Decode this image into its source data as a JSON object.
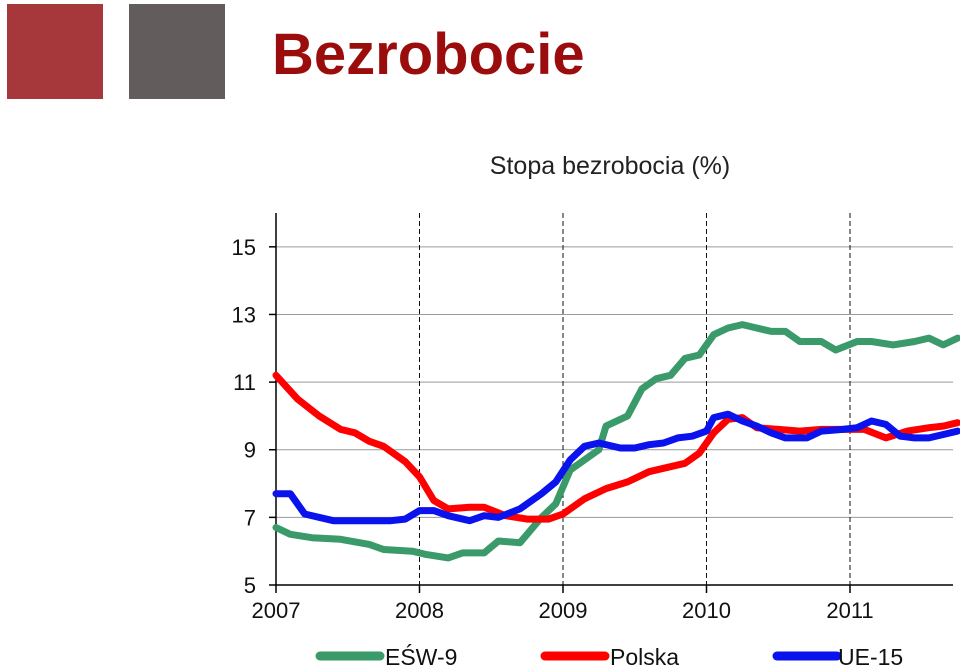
{
  "header": {
    "title": "Bezrobocie",
    "square_colors": [
      "#a6383b",
      "#625c5c"
    ],
    "title_color": "#9b0d0d"
  },
  "chart_data": {
    "type": "line",
    "title": "Stopa bezrobocia (%)",
    "xlabel": "",
    "ylabel": "",
    "xlim": [
      2007,
      2011.75
    ],
    "ylim": [
      5,
      16
    ],
    "x_ticks": [
      2007,
      2008,
      2009,
      2010,
      2011
    ],
    "y_ticks": [
      5,
      7,
      9,
      11,
      13,
      15
    ],
    "grid": "horizontal solid at y ticks, vertical dashed at year boundaries",
    "legend": "bottom",
    "series": [
      {
        "name": "EŚW-9",
        "color": "#3a9a6a",
        "points": [
          [
            2007.0,
            6.7
          ],
          [
            2007.1,
            6.5
          ],
          [
            2007.25,
            6.4
          ],
          [
            2007.45,
            6.35
          ],
          [
            2007.65,
            6.2
          ],
          [
            2007.75,
            6.05
          ],
          [
            2007.95,
            6.0
          ],
          [
            2008.05,
            5.9
          ],
          [
            2008.2,
            5.8
          ],
          [
            2008.3,
            5.95
          ],
          [
            2008.45,
            5.95
          ],
          [
            2008.55,
            6.3
          ],
          [
            2008.7,
            6.25
          ],
          [
            2008.85,
            7.0
          ],
          [
            2008.95,
            7.4
          ],
          [
            2009.05,
            8.4
          ],
          [
            2009.15,
            8.7
          ],
          [
            2009.25,
            9.0
          ],
          [
            2009.3,
            9.7
          ],
          [
            2009.45,
            10.0
          ],
          [
            2009.55,
            10.8
          ],
          [
            2009.65,
            11.1
          ],
          [
            2009.75,
            11.2
          ],
          [
            2009.85,
            11.7
          ],
          [
            2009.95,
            11.8
          ],
          [
            2010.05,
            12.4
          ],
          [
            2010.15,
            12.6
          ],
          [
            2010.25,
            12.7
          ],
          [
            2010.35,
            12.6
          ],
          [
            2010.45,
            12.5
          ],
          [
            2010.55,
            12.5
          ],
          [
            2010.65,
            12.2
          ],
          [
            2010.8,
            12.2
          ],
          [
            2010.9,
            11.95
          ],
          [
            2011.05,
            12.2
          ],
          [
            2011.15,
            12.2
          ],
          [
            2011.3,
            12.1
          ],
          [
            2011.45,
            12.2
          ],
          [
            2011.55,
            12.3
          ],
          [
            2011.65,
            12.1
          ],
          [
            2011.75,
            12.3
          ]
        ]
      },
      {
        "name": "Polska",
        "color": "#ff0000",
        "points": [
          [
            2007.0,
            11.2
          ],
          [
            2007.15,
            10.5
          ],
          [
            2007.3,
            10.0
          ],
          [
            2007.45,
            9.6
          ],
          [
            2007.55,
            9.5
          ],
          [
            2007.65,
            9.25
          ],
          [
            2007.75,
            9.1
          ],
          [
            2007.9,
            8.65
          ],
          [
            2008.0,
            8.2
          ],
          [
            2008.1,
            7.5
          ],
          [
            2008.2,
            7.25
          ],
          [
            2008.35,
            7.3
          ],
          [
            2008.45,
            7.3
          ],
          [
            2008.6,
            7.05
          ],
          [
            2008.75,
            6.95
          ],
          [
            2008.9,
            6.95
          ],
          [
            2009.0,
            7.1
          ],
          [
            2009.15,
            7.55
          ],
          [
            2009.3,
            7.85
          ],
          [
            2009.45,
            8.05
          ],
          [
            2009.6,
            8.35
          ],
          [
            2009.7,
            8.45
          ],
          [
            2009.85,
            8.6
          ],
          [
            2009.95,
            8.9
          ],
          [
            2010.05,
            9.5
          ],
          [
            2010.15,
            9.9
          ],
          [
            2010.25,
            9.95
          ],
          [
            2010.35,
            9.65
          ],
          [
            2010.5,
            9.6
          ],
          [
            2010.65,
            9.55
          ],
          [
            2010.8,
            9.6
          ],
          [
            2010.95,
            9.6
          ],
          [
            2011.1,
            9.6
          ],
          [
            2011.25,
            9.35
          ],
          [
            2011.4,
            9.55
          ],
          [
            2011.55,
            9.65
          ],
          [
            2011.65,
            9.7
          ],
          [
            2011.75,
            9.8
          ]
        ]
      },
      {
        "name": "UE-15",
        "color": "#0a12ee",
        "points": [
          [
            2007.0,
            7.7
          ],
          [
            2007.1,
            7.7
          ],
          [
            2007.2,
            7.1
          ],
          [
            2007.4,
            6.9
          ],
          [
            2007.6,
            6.9
          ],
          [
            2007.8,
            6.9
          ],
          [
            2007.9,
            6.95
          ],
          [
            2008.0,
            7.2
          ],
          [
            2008.1,
            7.2
          ],
          [
            2008.2,
            7.05
          ],
          [
            2008.35,
            6.9
          ],
          [
            2008.45,
            7.05
          ],
          [
            2008.55,
            7.0
          ],
          [
            2008.7,
            7.25
          ],
          [
            2008.85,
            7.7
          ],
          [
            2008.95,
            8.05
          ],
          [
            2009.05,
            8.7
          ],
          [
            2009.15,
            9.1
          ],
          [
            2009.25,
            9.2
          ],
          [
            2009.4,
            9.05
          ],
          [
            2009.5,
            9.05
          ],
          [
            2009.6,
            9.15
          ],
          [
            2009.7,
            9.2
          ],
          [
            2009.8,
            9.35
          ],
          [
            2009.9,
            9.4
          ],
          [
            2010.0,
            9.55
          ],
          [
            2010.05,
            9.95
          ],
          [
            2010.15,
            10.05
          ],
          [
            2010.25,
            9.85
          ],
          [
            2010.35,
            9.7
          ],
          [
            2010.45,
            9.5
          ],
          [
            2010.55,
            9.35
          ],
          [
            2010.7,
            9.35
          ],
          [
            2010.8,
            9.55
          ],
          [
            2010.95,
            9.6
          ],
          [
            2011.05,
            9.65
          ],
          [
            2011.15,
            9.85
          ],
          [
            2011.25,
            9.75
          ],
          [
            2011.35,
            9.4
          ],
          [
            2011.45,
            9.35
          ],
          [
            2011.55,
            9.35
          ],
          [
            2011.65,
            9.45
          ],
          [
            2011.75,
            9.55
          ]
        ]
      }
    ]
  }
}
